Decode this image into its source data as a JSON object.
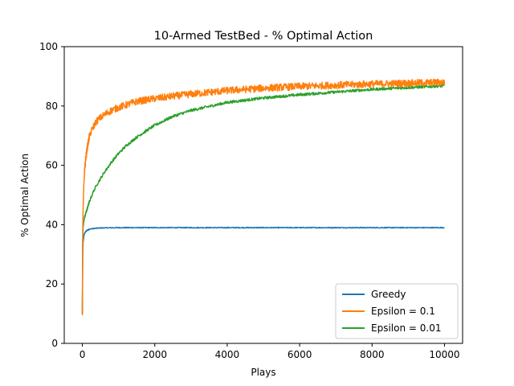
{
  "chart_data": {
    "type": "line",
    "title": "10-Armed TestBed - % Optimal Action",
    "xlabel": "Plays",
    "ylabel": "% Optimal Action",
    "xlim": [
      -500,
      10500
    ],
    "ylim": [
      0,
      100
    ],
    "xticks": [
      0,
      2000,
      4000,
      6000,
      8000,
      10000
    ],
    "yticks": [
      0,
      20,
      40,
      60,
      80,
      100
    ],
    "grid": false,
    "legend_position": "lower-right",
    "series": [
      {
        "name": "Greedy",
        "color": "#1f77b4",
        "noise": 0.15,
        "x": [
          0,
          10,
          20,
          40,
          60,
          100,
          150,
          200,
          300,
          500,
          1000,
          2000,
          4000,
          6000,
          8000,
          10000
        ],
        "y": [
          10,
          30,
          34,
          36,
          37,
          37.8,
          38.2,
          38.5,
          38.7,
          38.9,
          39,
          39,
          39,
          39,
          39,
          39
        ]
      },
      {
        "name": "Epsilon = 0.1",
        "color": "#ff7f0e",
        "noise": 1.2,
        "x": [
          0,
          10,
          20,
          40,
          60,
          100,
          150,
          200,
          300,
          400,
          600,
          800,
          1000,
          1500,
          2000,
          2500,
          3000,
          4000,
          5000,
          6000,
          7000,
          8000,
          9000,
          10000
        ],
        "y": [
          9.5,
          38,
          45,
          53,
          58,
          63,
          67,
          70,
          73,
          75,
          77,
          78.5,
          79.5,
          81.5,
          82.5,
          83.3,
          84,
          85.2,
          86,
          86.6,
          87,
          87.4,
          87.7,
          88
        ]
      },
      {
        "name": "Epsilon = 0.01",
        "color": "#2ca02c",
        "noise": 0.45,
        "x": [
          0,
          10,
          20,
          40,
          60,
          100,
          150,
          200,
          300,
          400,
          600,
          800,
          1000,
          1200,
          1500,
          2000,
          2500,
          3000,
          4000,
          5000,
          6000,
          7000,
          8000,
          9000,
          10000
        ],
        "y": [
          10,
          34,
          39,
          41,
          42.5,
          44,
          46,
          48,
          51,
          53.5,
          57.5,
          61,
          64,
          66.5,
          69.5,
          73.5,
          76.5,
          78.5,
          81.2,
          82.7,
          83.8,
          84.7,
          85.6,
          86.2,
          86.8
        ]
      }
    ]
  }
}
